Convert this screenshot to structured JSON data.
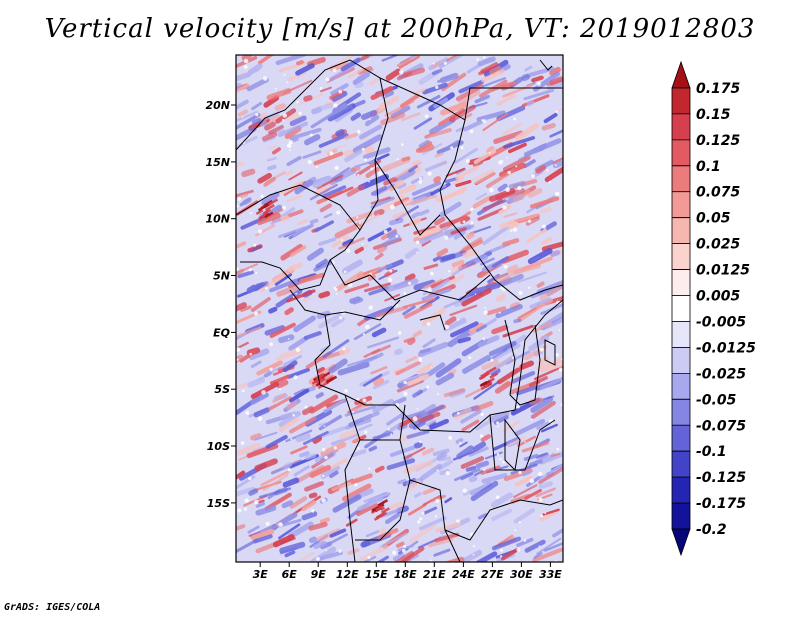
{
  "title": "Vertical velocity [m/s] at 200hPa, VT: 2019012803",
  "footer": "GrADS: IGES/COLA",
  "map": {
    "variable": "Vertical velocity",
    "units": "m/s",
    "level": "200hPa",
    "valid_time": "2019012803",
    "lat_labels": [
      "20N",
      "15N",
      "10N",
      "5N",
      "EQ",
      "5S",
      "10S",
      "15S"
    ],
    "lon_labels": [
      "3E",
      "6E",
      "9E",
      "12E",
      "15E",
      "18E",
      "21E",
      "24E",
      "27E",
      "30E",
      "33E"
    ]
  },
  "colorbar": {
    "levels": [
      "0.175",
      "0.15",
      "0.125",
      "0.1",
      "0.075",
      "0.05",
      "0.025",
      "0.0125",
      "0.005",
      "-0.005",
      "-0.0125",
      "-0.025",
      "-0.05",
      "-0.075",
      "-0.1",
      "-0.125",
      "-0.175",
      "-0.2"
    ],
    "colors": [
      "#a50f15",
      "#c1272d",
      "#d6404e",
      "#e35a63",
      "#ec7b7b",
      "#f29a95",
      "#f6b7b1",
      "#fad3cf",
      "#fdeeed",
      "#ffffff",
      "#e6e6fb",
      "#cbcbf4",
      "#a8a8ee",
      "#8585e3",
      "#6464d8",
      "#4343c8",
      "#2525b3",
      "#12129a",
      "#06067a"
    ]
  },
  "style": {
    "positive_color": "#e0534f",
    "negative_color": "#5555d8",
    "boundary_color": "#000000"
  }
}
